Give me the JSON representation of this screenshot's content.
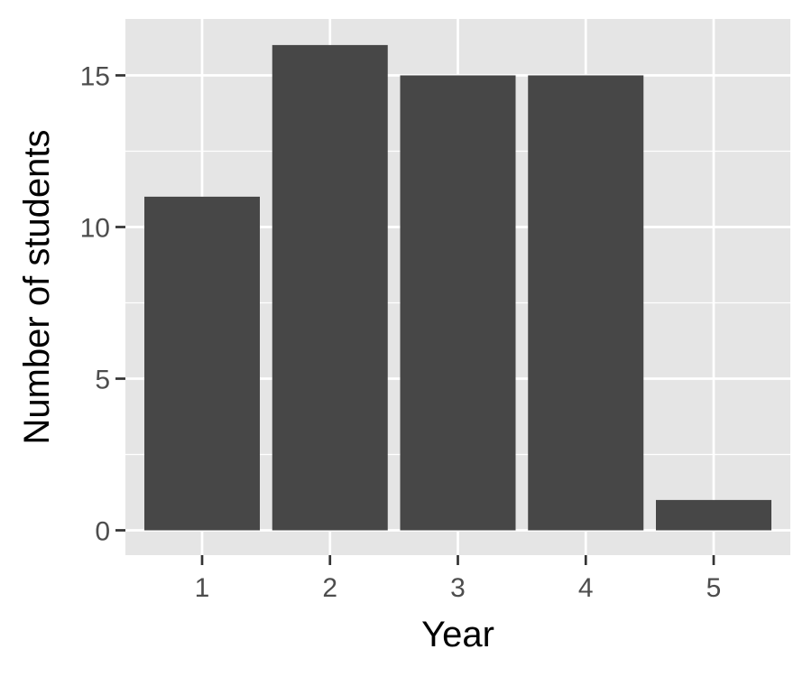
{
  "chart_data": {
    "type": "bar",
    "title": "",
    "xlabel": "Year",
    "ylabel": "Number of students",
    "categories": [
      "1",
      "2",
      "3",
      "4",
      "5"
    ],
    "values": [
      11,
      16,
      15,
      15,
      1
    ],
    "ylim": [
      0,
      16.8
    ],
    "y_ticks": [
      0,
      5,
      10,
      15
    ],
    "y_tick_labels": [
      "0",
      "5",
      "10",
      "15"
    ],
    "grid": true,
    "legend": "none",
    "colors": {
      "bar": "#474747",
      "panel_background": "#e5e5e5",
      "grid": "#ffffff",
      "tick_text": "#4d4d4d",
      "axis_title": "#000000"
    }
  }
}
